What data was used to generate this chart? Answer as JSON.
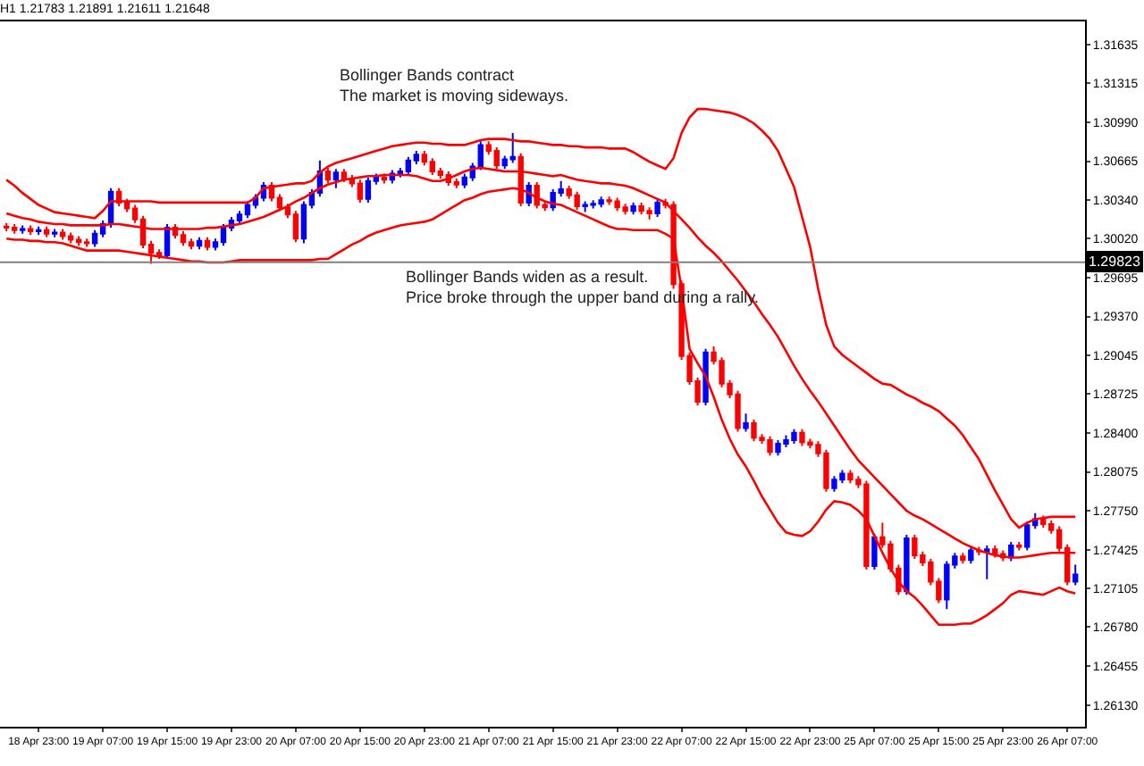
{
  "chart_data": {
    "type": "candlestick",
    "title": "H1 1.21783 1.21891 1.21611 1.21648",
    "categories": [
      null,
      null,
      null,
      null,
      "18 Apr 23:00",
      null,
      null,
      null,
      null,
      null,
      null,
      null,
      "19 Apr 07:00",
      null,
      null,
      null,
      null,
      null,
      null,
      null,
      "19 Apr 15:00",
      null,
      null,
      null,
      null,
      null,
      null,
      null,
      "19 Apr 23:00",
      null,
      null,
      null,
      null,
      null,
      null,
      null,
      "20 Apr 07:00",
      null,
      null,
      null,
      null,
      null,
      null,
      null,
      "20 Apr 15:00",
      null,
      null,
      null,
      null,
      null,
      null,
      null,
      "20 Apr 23:00",
      null,
      null,
      null,
      null,
      null,
      null,
      null,
      "21 Apr 07:00",
      null,
      null,
      null,
      null,
      null,
      null,
      null,
      "21 Apr 15:00",
      null,
      null,
      null,
      null,
      null,
      null,
      null,
      "21 Apr 23:00",
      null,
      null,
      null,
      null,
      null,
      null,
      null,
      "22 Apr 07:00",
      null,
      null,
      null,
      null,
      null,
      null,
      null,
      "22 Apr 15:00",
      null,
      null,
      null,
      null,
      null,
      null,
      null,
      "22 Apr 23:00",
      null,
      null,
      null,
      null,
      null,
      null,
      null,
      "25 Apr 07:00",
      null,
      null,
      null,
      null,
      null,
      null,
      null,
      "25 Apr 15:00",
      null,
      null,
      null,
      null,
      null,
      null,
      null,
      "25 Apr 23:00",
      null,
      null,
      null,
      null,
      null,
      null,
      null,
      "26 Apr 07:00",
      null
    ],
    "ohlc": [
      [
        1.3012,
        1.3015,
        1.3008,
        1.3011
      ],
      [
        1.3011,
        1.3014,
        1.3006,
        1.3009
      ],
      [
        1.3009,
        1.3013,
        1.3006,
        1.301
      ],
      [
        1.301,
        1.3013,
        1.3005,
        1.3008
      ],
      [
        1.3008,
        1.3012,
        1.3005,
        1.3009
      ],
      [
        1.3009,
        1.3012,
        1.3003,
        1.3006
      ],
      [
        1.3006,
        1.301,
        1.3003,
        1.3007
      ],
      [
        1.3007,
        1.301,
        1.3001,
        1.3004
      ],
      [
        1.3004,
        1.3007,
        1.2998,
        1.3001
      ],
      [
        1.3001,
        1.3004,
        1.2996,
        1.2999
      ],
      [
        1.2999,
        1.3002,
        1.2995,
        1.2998
      ],
      [
        1.2998,
        1.3009,
        1.2995,
        1.3006
      ],
      [
        1.3006,
        1.3017,
        1.3003,
        1.3014
      ],
      [
        1.3014,
        1.3044,
        1.3011,
        1.3041
      ],
      [
        1.3041,
        1.3044,
        1.3029,
        1.3032
      ],
      [
        1.3032,
        1.3035,
        1.3024,
        1.3027
      ],
      [
        1.3027,
        1.303,
        1.3015,
        1.3018
      ],
      [
        1.3018,
        1.3021,
        1.2994,
        1.2997
      ],
      [
        1.2997,
        1.3,
        1.2981,
        1.299
      ],
      [
        1.299,
        1.2993,
        1.2985,
        1.2988
      ],
      [
        1.2988,
        1.3014,
        1.2985,
        1.3011
      ],
      [
        1.3011,
        1.3014,
        1.3002,
        1.3005
      ],
      [
        1.3005,
        1.3008,
        1.2996,
        1.2999
      ],
      [
        1.2999,
        1.3002,
        1.2993,
        1.2996
      ],
      [
        1.2996,
        1.3003,
        1.2993,
        1.3
      ],
      [
        1.3,
        1.3003,
        1.2992,
        1.2995
      ],
      [
        1.2995,
        1.3002,
        1.2992,
        1.2999
      ],
      [
        1.2999,
        1.3014,
        1.2996,
        1.3011
      ],
      [
        1.3011,
        1.302,
        1.3008,
        1.3017
      ],
      [
        1.3017,
        1.3025,
        1.3014,
        1.3022
      ],
      [
        1.3022,
        1.3033,
        1.3019,
        1.303
      ],
      [
        1.303,
        1.3039,
        1.3027,
        1.3036
      ],
      [
        1.3036,
        1.3049,
        1.3033,
        1.3046
      ],
      [
        1.3046,
        1.3049,
        1.3033,
        1.3036
      ],
      [
        1.3036,
        1.3039,
        1.3025,
        1.3028
      ],
      [
        1.3028,
        1.3031,
        1.3019,
        1.3022
      ],
      [
        1.3022,
        1.3025,
        1.2999,
        1.3002
      ],
      [
        1.3002,
        1.3033,
        1.2998,
        1.303
      ],
      [
        1.303,
        1.3043,
        1.3027,
        1.304
      ],
      [
        1.304,
        1.3067,
        1.3037,
        1.3058
      ],
      [
        1.3058,
        1.3061,
        1.3048,
        1.3051
      ],
      [
        1.3051,
        1.306,
        1.3044,
        1.3057
      ],
      [
        1.3057,
        1.306,
        1.3049,
        1.3052
      ],
      [
        1.3052,
        1.3055,
        1.3045,
        1.3048
      ],
      [
        1.3048,
        1.3051,
        1.3032,
        1.3035
      ],
      [
        1.3035,
        1.3053,
        1.3032,
        1.305
      ],
      [
        1.305,
        1.3056,
        1.3047,
        1.3053
      ],
      [
        1.3053,
        1.3056,
        1.3048,
        1.3051
      ],
      [
        1.3051,
        1.3059,
        1.3048,
        1.3056
      ],
      [
        1.3056,
        1.3061,
        1.3053,
        1.3058
      ],
      [
        1.3058,
        1.307,
        1.3055,
        1.3067
      ],
      [
        1.3067,
        1.3075,
        1.3064,
        1.3072
      ],
      [
        1.3072,
        1.3075,
        1.3063,
        1.3066
      ],
      [
        1.3066,
        1.3069,
        1.3055,
        1.3058
      ],
      [
        1.3058,
        1.3061,
        1.3052,
        1.3055
      ],
      [
        1.3055,
        1.3058,
        1.3046,
        1.3049
      ],
      [
        1.3049,
        1.3052,
        1.3044,
        1.3047
      ],
      [
        1.3047,
        1.3056,
        1.3044,
        1.3053
      ],
      [
        1.3053,
        1.3065,
        1.305,
        1.3062
      ],
      [
        1.3062,
        1.3083,
        1.3059,
        1.308
      ],
      [
        1.308,
        1.3083,
        1.3072,
        1.3075
      ],
      [
        1.3075,
        1.3078,
        1.306,
        1.3063
      ],
      [
        1.3063,
        1.3071,
        1.306,
        1.3068
      ],
      [
        1.3068,
        1.309,
        1.3065,
        1.307
      ],
      [
        1.307,
        1.3073,
        1.3029,
        1.3032
      ],
      [
        1.3032,
        1.3049,
        1.3029,
        1.3046
      ],
      [
        1.3046,
        1.3049,
        1.3027,
        1.303
      ],
      [
        1.303,
        1.3033,
        1.3025,
        1.3028
      ],
      [
        1.3028,
        1.3043,
        1.3025,
        1.304
      ],
      [
        1.304,
        1.305,
        1.3037,
        1.3043
      ],
      [
        1.3043,
        1.3046,
        1.3035,
        1.3038
      ],
      [
        1.3038,
        1.3041,
        1.3026,
        1.3029
      ],
      [
        1.3029,
        1.3033,
        1.3024,
        1.303
      ],
      [
        1.303,
        1.3034,
        1.3027,
        1.3031
      ],
      [
        1.3031,
        1.3037,
        1.3028,
        1.3034
      ],
      [
        1.3034,
        1.3037,
        1.303,
        1.3033
      ],
      [
        1.3033,
        1.3036,
        1.3025,
        1.3028
      ],
      [
        1.3028,
        1.3031,
        1.3022,
        1.3025
      ],
      [
        1.3025,
        1.3032,
        1.3022,
        1.3029
      ],
      [
        1.3029,
        1.3032,
        1.3022,
        1.3025
      ],
      [
        1.3025,
        1.3028,
        1.3018,
        1.3023
      ],
      [
        1.3023,
        1.3035,
        1.302,
        1.3032
      ],
      [
        1.3032,
        1.3035,
        1.3027,
        1.303
      ],
      [
        1.303,
        1.3033,
        1.296,
        1.2964
      ],
      [
        1.2964,
        1.2967,
        1.2901,
        1.2904
      ],
      [
        1.2904,
        1.2907,
        1.288,
        1.2883
      ],
      [
        1.2883,
        1.2886,
        1.2863,
        1.2866
      ],
      [
        1.2866,
        1.291,
        1.2863,
        1.2907
      ],
      [
        1.2907,
        1.2912,
        1.2897,
        1.29
      ],
      [
        1.29,
        1.2903,
        1.2878,
        1.2881
      ],
      [
        1.2881,
        1.2884,
        1.2869,
        1.2872
      ],
      [
        1.2872,
        1.2875,
        1.2841,
        1.2844
      ],
      [
        1.2844,
        1.2856,
        1.2841,
        1.2848
      ],
      [
        1.2848,
        1.2851,
        1.2833,
        1.2836
      ],
      [
        1.2836,
        1.2839,
        1.2831,
        1.2834
      ],
      [
        1.2834,
        1.2837,
        1.2821,
        1.2824
      ],
      [
        1.2824,
        1.2834,
        1.2821,
        1.2831
      ],
      [
        1.2831,
        1.2838,
        1.2828,
        1.2834
      ],
      [
        1.2834,
        1.2843,
        1.2831,
        1.284
      ],
      [
        1.284,
        1.2843,
        1.2829,
        1.2832
      ],
      [
        1.2832,
        1.2835,
        1.2827,
        1.283
      ],
      [
        1.283,
        1.2833,
        1.282,
        1.2823
      ],
      [
        1.2823,
        1.2826,
        1.2791,
        1.2794
      ],
      [
        1.2794,
        1.2804,
        1.2791,
        1.2801
      ],
      [
        1.2801,
        1.2809,
        1.2798,
        1.2806
      ],
      [
        1.2806,
        1.2809,
        1.2798,
        1.2801
      ],
      [
        1.2801,
        1.2804,
        1.2794,
        1.2797
      ],
      [
        1.2797,
        1.28,
        1.2726,
        1.2729
      ],
      [
        1.2729,
        1.2756,
        1.2726,
        1.2753
      ],
      [
        1.2753,
        1.2765,
        1.2744,
        1.2747
      ],
      [
        1.2747,
        1.275,
        1.2724,
        1.2727
      ],
      [
        1.2727,
        1.273,
        1.2705,
        1.2708
      ],
      [
        1.2708,
        1.2755,
        1.2705,
        1.2752
      ],
      [
        1.2752,
        1.2755,
        1.2735,
        1.2738
      ],
      [
        1.2738,
        1.2741,
        1.2729,
        1.2732
      ],
      [
        1.2732,
        1.2735,
        1.2713,
        1.2716
      ],
      [
        1.2716,
        1.2719,
        1.2698,
        1.2701
      ],
      [
        1.2701,
        1.2733,
        1.2693,
        1.273
      ],
      [
        1.273,
        1.274,
        1.2727,
        1.2737
      ],
      [
        1.2737,
        1.274,
        1.2731,
        1.2734
      ],
      [
        1.2734,
        1.2745,
        1.2731,
        1.2742
      ],
      [
        1.2742,
        1.2745,
        1.2738,
        1.2741
      ],
      [
        1.2741,
        1.2746,
        1.2718,
        1.2743
      ],
      [
        1.2743,
        1.2746,
        1.2736,
        1.2739
      ],
      [
        1.2739,
        1.2742,
        1.2733,
        1.2736
      ],
      [
        1.2736,
        1.2749,
        1.2733,
        1.2746
      ],
      [
        1.2746,
        1.2749,
        1.2742,
        1.2745
      ],
      [
        1.2745,
        1.2766,
        1.2742,
        1.2763
      ],
      [
        1.2763,
        1.2773,
        1.276,
        1.2768
      ],
      [
        1.2768,
        1.2771,
        1.2761,
        1.2764
      ],
      [
        1.2764,
        1.2767,
        1.2756,
        1.2759
      ],
      [
        1.2759,
        1.2762,
        1.2741,
        1.2744
      ],
      [
        1.2744,
        1.2747,
        1.2713,
        1.2716
      ],
      [
        1.2716,
        1.273,
        1.2713,
        1.2722
      ]
    ],
    "colors": [
      "#ff0000",
      "#ff0000",
      "#0000ff",
      "#ff0000",
      "#0000ff",
      "#ff0000",
      "#0000ff",
      "#ff0000",
      "#ff0000",
      "#ff0000",
      "#ff0000",
      "#0000ff",
      "#0000ff",
      "#0000ff",
      "#ff0000",
      "#ff0000",
      "#ff0000",
      "#ff0000",
      "#ff0000",
      "#ff0000",
      "#0000ff",
      "#ff0000",
      "#ff0000",
      "#ff0000",
      "#0000ff",
      "#ff0000",
      "#0000ff",
      "#0000ff",
      "#0000ff",
      "#0000ff",
      "#0000ff",
      "#0000ff",
      "#0000ff",
      "#ff0000",
      "#ff0000",
      "#ff0000",
      "#ff0000",
      "#0000ff",
      "#0000ff",
      "#0000ff",
      "#ff0000",
      "#0000ff",
      "#ff0000",
      "#ff0000",
      "#ff0000",
      "#0000ff",
      "#0000ff",
      "#ff0000",
      "#0000ff",
      "#0000ff",
      "#0000ff",
      "#0000ff",
      "#ff0000",
      "#ff0000",
      "#ff0000",
      "#ff0000",
      "#ff0000",
      "#0000ff",
      "#0000ff",
      "#0000ff",
      "#ff0000",
      "#ff0000",
      "#0000ff",
      "#0000ff",
      "#ff0000",
      "#0000ff",
      "#ff0000",
      "#ff0000",
      "#0000ff",
      "#0000ff",
      "#ff0000",
      "#ff0000",
      "#0000ff",
      "#0000ff",
      "#0000ff",
      "#ff0000",
      "#ff0000",
      "#ff0000",
      "#0000ff",
      "#ff0000",
      "#ff0000",
      "#0000ff",
      "#ff0000",
      "#ff0000",
      "#ff0000",
      "#ff0000",
      "#ff0000",
      "#0000ff",
      "#ff0000",
      "#ff0000",
      "#ff0000",
      "#ff0000",
      "#0000ff",
      "#ff0000",
      "#ff0000",
      "#ff0000",
      "#0000ff",
      "#0000ff",
      "#0000ff",
      "#ff0000",
      "#ff0000",
      "#ff0000",
      "#ff0000",
      "#0000ff",
      "#0000ff",
      "#ff0000",
      "#ff0000",
      "#ff0000",
      "#0000ff",
      "#ff0000",
      "#ff0000",
      "#ff0000",
      "#0000ff",
      "#ff0000",
      "#ff0000",
      "#ff0000",
      "#ff0000",
      "#0000ff",
      "#0000ff",
      "#ff0000",
      "#0000ff",
      "#ff0000",
      "#0000ff",
      "#ff0000",
      "#ff0000",
      "#0000ff",
      "#ff0000",
      "#0000ff",
      "#0000ff",
      "#ff0000",
      "#ff0000",
      "#ff0000",
      "#ff0000",
      "#0000ff"
    ],
    "series": [
      {
        "type": "line",
        "color": "#ff0000",
        "values": [
          1.3051,
          1.3046,
          1.304,
          1.3035,
          1.303,
          1.3027,
          1.3024,
          1.3023,
          1.3022,
          1.3021,
          1.302,
          1.3019,
          1.3025,
          1.3033,
          1.3033,
          1.3033,
          1.3033,
          1.3033,
          1.3033,
          1.3032,
          1.3032,
          1.3032,
          1.3032,
          1.3032,
          1.3032,
          1.3032,
          1.3032,
          1.3032,
          1.3032,
          1.3032,
          1.3032,
          1.3036,
          1.3044,
          1.3045,
          1.3046,
          1.3047,
          1.3048,
          1.3048,
          1.305,
          1.3057,
          1.3062,
          1.3065,
          1.3067,
          1.3069,
          1.3071,
          1.3073,
          1.3075,
          1.3077,
          1.3079,
          1.308,
          1.3081,
          1.3082,
          1.3082,
          1.3081,
          1.3081,
          1.308,
          1.308,
          1.308,
          1.3082,
          1.3084,
          1.3085,
          1.3085,
          1.3085,
          1.3084,
          1.3083,
          1.3083,
          1.3082,
          1.3081,
          1.308,
          1.308,
          1.3079,
          1.3079,
          1.3078,
          1.3078,
          1.3078,
          1.3077,
          1.3077,
          1.3077,
          1.3074,
          1.307,
          1.3066,
          1.3063,
          1.306,
          1.3069,
          1.309,
          1.3103,
          1.311,
          1.311,
          1.3109,
          1.3108,
          1.3107,
          1.3105,
          1.3102,
          1.3098,
          1.3092,
          1.3085,
          1.3075,
          1.306,
          1.3045,
          1.302,
          1.2995,
          1.296,
          1.293,
          1.2912,
          1.2905,
          1.29,
          1.2895,
          1.289,
          1.2885,
          1.2881,
          1.288,
          1.2876,
          1.2872,
          1.2869,
          1.2865,
          1.2862,
          1.2858,
          1.2852,
          1.2846,
          1.2838,
          1.2828,
          1.2818,
          1.2805,
          1.2792,
          1.278,
          1.2768,
          1.2761,
          1.2765,
          1.2768,
          1.2769,
          1.277,
          1.277,
          1.277,
          1.277
        ]
      },
      {
        "type": "line",
        "color": "#ff0000",
        "values": [
          1.3023,
          1.3021,
          1.3019,
          1.3018,
          1.3016,
          1.3015,
          1.3014,
          1.3014,
          1.3013,
          1.3013,
          1.3013,
          1.3013,
          1.3013,
          1.3014,
          1.3014,
          1.3013,
          1.3012,
          1.3011,
          1.301,
          1.301,
          1.301,
          1.301,
          1.301,
          1.301,
          1.301,
          1.3011,
          1.3011,
          1.3012,
          1.3013,
          1.3014,
          1.3016,
          1.3018,
          1.302,
          1.3023,
          1.3026,
          1.3029,
          1.3033,
          1.3036,
          1.304,
          1.3044,
          1.3047,
          1.3049,
          1.3051,
          1.3052,
          1.3053,
          1.3054,
          1.3054,
          1.3055,
          1.3055,
          1.3055,
          1.3055,
          1.3054,
          1.3052,
          1.305,
          1.305,
          1.3052,
          1.3055,
          1.3058,
          1.306,
          1.3061,
          1.306,
          1.3059,
          1.3058,
          1.3058,
          1.3058,
          1.3057,
          1.3056,
          1.3055,
          1.3054,
          1.3055,
          1.3053,
          1.3051,
          1.305,
          1.3049,
          1.3048,
          1.3048,
          1.3047,
          1.3046,
          1.3044,
          1.3041,
          1.3038,
          1.3035,
          1.3032,
          1.3025,
          1.3018,
          1.3011,
          1.3003,
          1.2996,
          1.299,
          1.2983,
          1.2975,
          1.2967,
          1.2958,
          1.2949,
          1.2939,
          1.293,
          1.292,
          1.2908,
          1.2896,
          1.2885,
          1.2875,
          1.2866,
          1.2856,
          1.2846,
          1.2836,
          1.2826,
          1.2817,
          1.281,
          1.2803,
          1.2796,
          1.2789,
          1.2782,
          1.2775,
          1.2771,
          1.2768,
          1.2764,
          1.276,
          1.2756,
          1.2752,
          1.2748,
          1.2745,
          1.2742,
          1.274,
          1.2738,
          1.2737,
          1.2736,
          1.2736,
          1.2737,
          1.2738,
          1.2739,
          1.274,
          1.274,
          1.274,
          1.274
        ]
      },
      {
        "type": "line",
        "color": "#ff0000",
        "values": [
          1.3002,
          1.3001,
          1.3001,
          1.3,
          1.3,
          1.2999,
          1.2999,
          1.2998,
          1.2996,
          1.2994,
          1.2992,
          1.2992,
          1.2992,
          1.2992,
          1.2992,
          1.2991,
          1.299,
          1.2989,
          1.2988,
          1.2987,
          1.2986,
          1.2985,
          1.2984,
          1.2983,
          1.2983,
          1.2982,
          1.2982,
          1.2982,
          1.2983,
          1.2984,
          1.2984,
          1.2984,
          1.2984,
          1.2984,
          1.2984,
          1.2984,
          1.2984,
          1.2984,
          1.2984,
          1.2985,
          1.2985,
          1.2989,
          1.2993,
          1.2997,
          1.3,
          1.3004,
          1.3007,
          1.3009,
          1.3011,
          1.3013,
          1.3014,
          1.3015,
          1.3016,
          1.3018,
          1.3022,
          1.3026,
          1.303,
          1.3034,
          1.3036,
          1.3039,
          1.3041,
          1.3042,
          1.3043,
          1.3044,
          1.3043,
          1.304,
          1.3036,
          1.3033,
          1.3031,
          1.303,
          1.3027,
          1.3024,
          1.3021,
          1.3018,
          1.3015,
          1.3012,
          1.301,
          1.301,
          1.3009,
          1.3009,
          1.3009,
          1.3009,
          1.3006,
          1.3002,
          1.296,
          1.291,
          1.2898,
          1.2887,
          1.287,
          1.2851,
          1.2835,
          1.2822,
          1.2812,
          1.28,
          1.2787,
          1.2776,
          1.2765,
          1.2757,
          1.2755,
          1.2754,
          1.2758,
          1.2766,
          1.2776,
          1.2783,
          1.2782,
          1.278,
          1.2775,
          1.2768,
          1.2754,
          1.274,
          1.2727,
          1.2716,
          1.2708,
          1.2703,
          1.2696,
          1.2688,
          1.268,
          1.268,
          1.268,
          1.2681,
          1.2681,
          1.2684,
          1.2688,
          1.2693,
          1.2698,
          1.2705,
          1.2708,
          1.2707,
          1.2706,
          1.2705,
          1.2708,
          1.2711,
          1.2708,
          1.2706
        ]
      }
    ],
    "ref_lines": [
      {
        "axis": "y",
        "value": 1.29823,
        "label": "1.29823",
        "color": "#808080"
      }
    ],
    "annotations": [
      "Bollinger Bands contract\nThe market is moving sideways.",
      "Bollinger Bands widen as a result.\nPrice broke through the upper band during a rally."
    ],
    "ylim": [
      1.2595,
      1.3183
    ],
    "yticks": [
      {
        "value": 1.31635,
        "label": "1.31635"
      },
      {
        "value": 1.31315,
        "label": "1.31315"
      },
      {
        "value": 1.3099,
        "label": "1.30990"
      },
      {
        "value": 1.30665,
        "label": "1.30665"
      },
      {
        "value": 1.3034,
        "label": "1.30340"
      },
      {
        "value": 1.3002,
        "label": "1.30020"
      },
      {
        "value": 1.29695,
        "label": "1.29695"
      },
      {
        "value": 1.2937,
        "label": "1.29370"
      },
      {
        "value": 1.29045,
        "label": "1.29045"
      },
      {
        "value": 1.28725,
        "label": "1.28725"
      },
      {
        "value": 1.284,
        "label": "1.28400"
      },
      {
        "value": 1.28075,
        "label": "1.28075"
      },
      {
        "value": 1.2775,
        "label": "1.27750"
      },
      {
        "value": 1.27425,
        "label": "1.27425"
      },
      {
        "value": 1.27105,
        "label": "1.27105"
      },
      {
        "value": 1.2678,
        "label": "1.26780"
      },
      {
        "value": 1.26455,
        "label": "1.26455"
      },
      {
        "value": 1.2613,
        "label": "1.26130"
      }
    ]
  }
}
